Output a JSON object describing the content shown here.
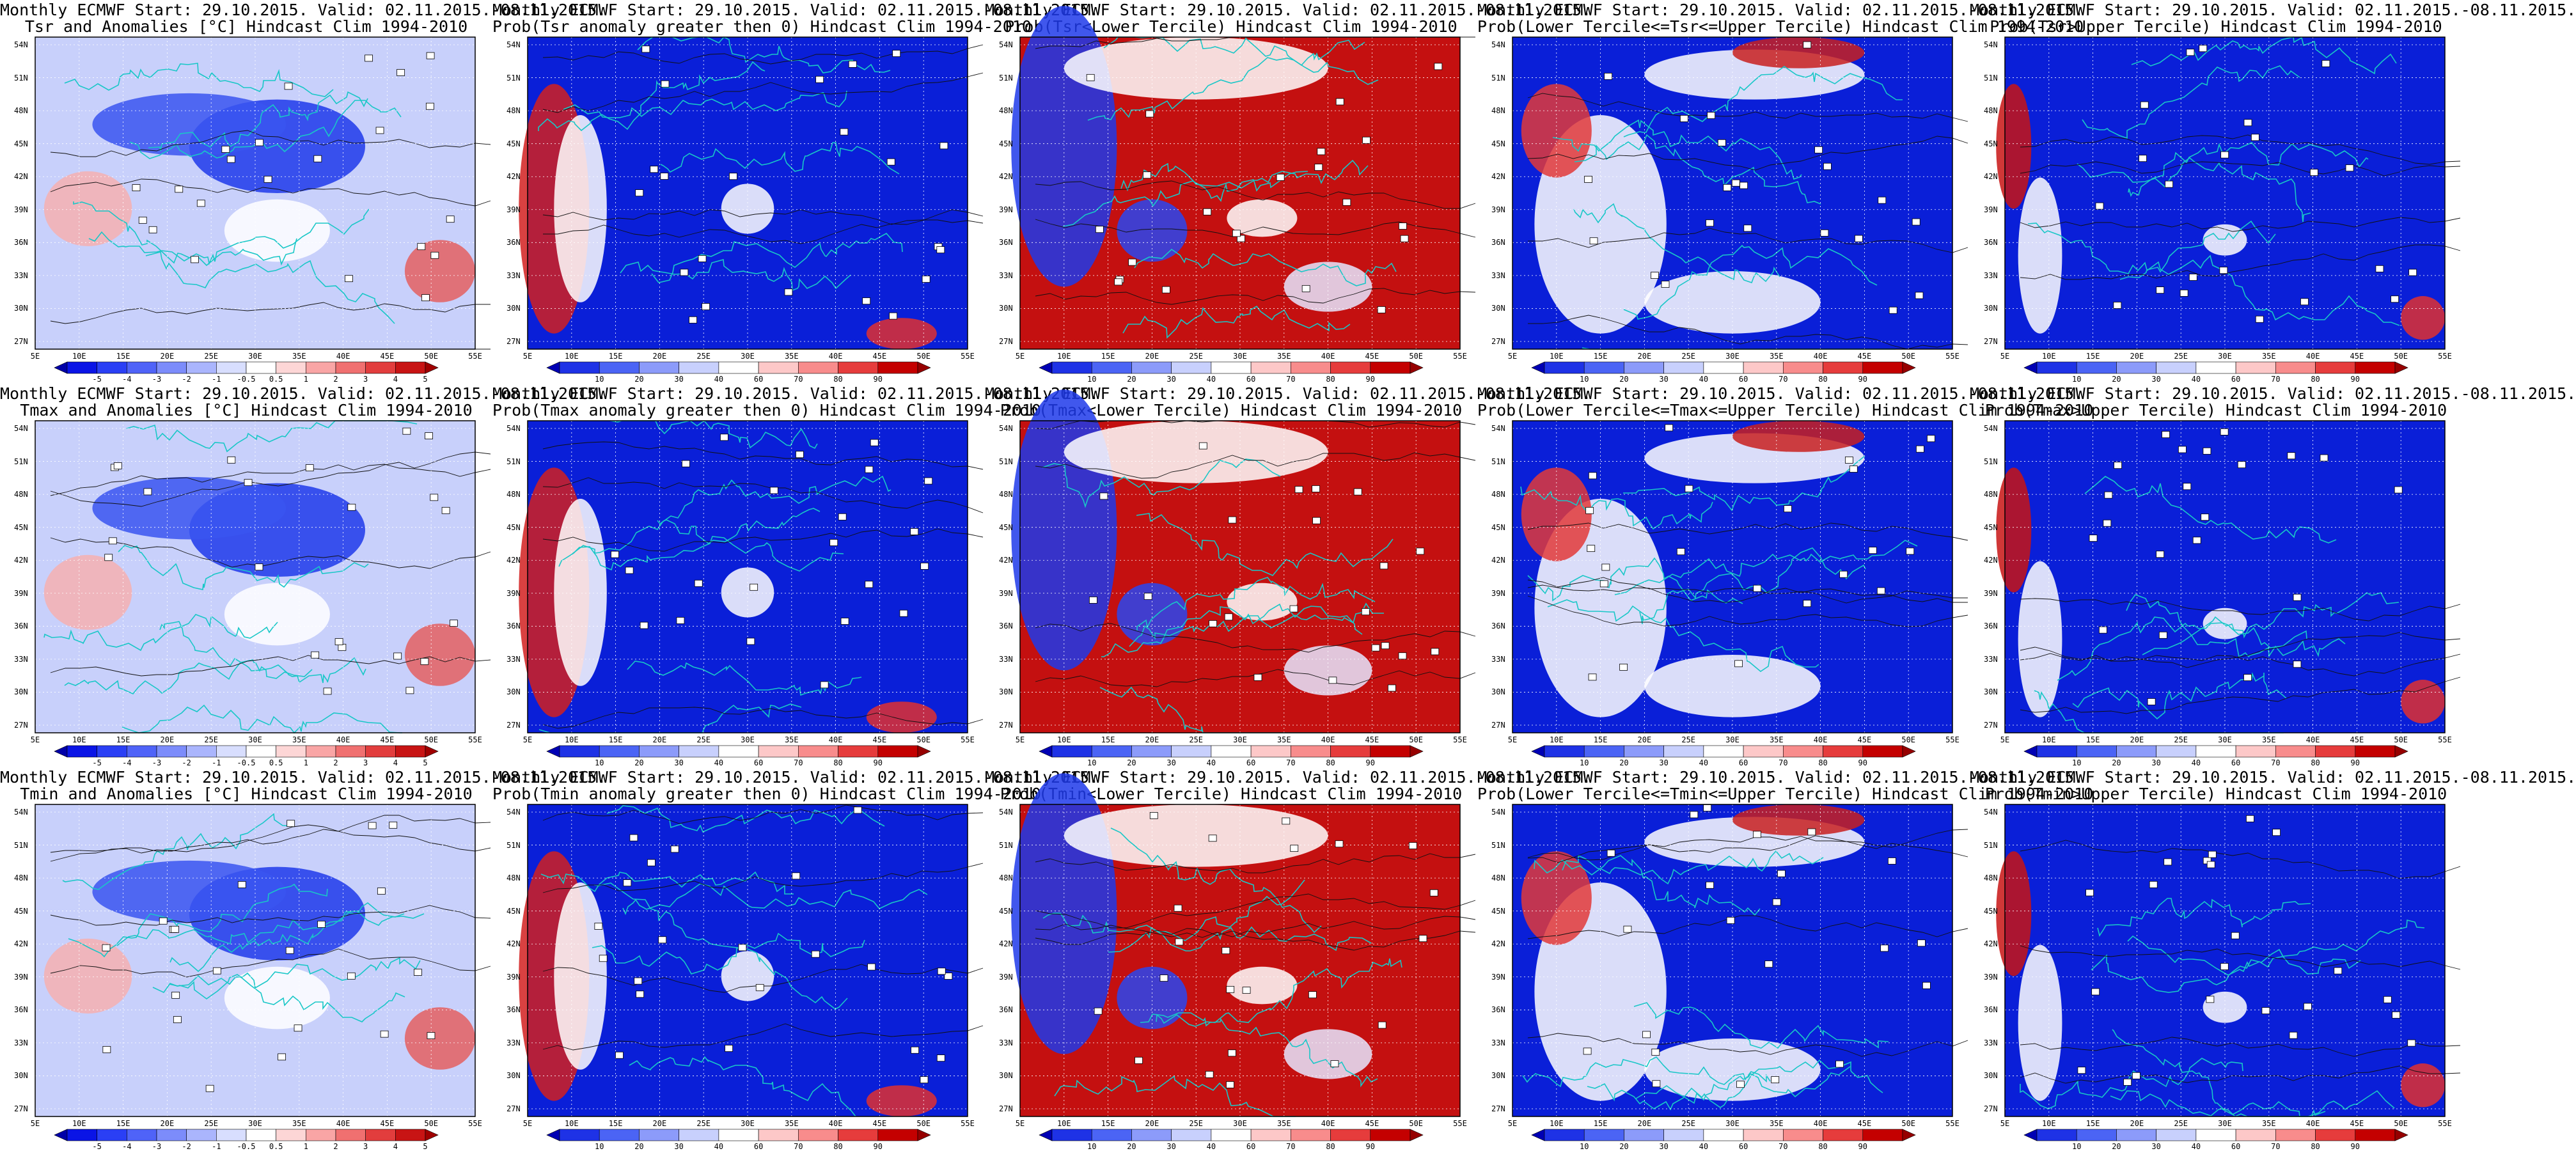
{
  "grid_rows": [
    {
      "variable": "Tsr",
      "panels": [
        {
          "kind": "anomaly",
          "title1": "Monthly ECMWF Start: 29.10.2015. Valid: 02.11.2015.-08.11.2015.",
          "title2": "Tsr and Anomalies [°C] Hindcast Clim 1994-2010"
        },
        {
          "kind": "prob_pos",
          "title1": "Monthly ECMWF Start: 29.10.2015. Valid: 02.11.2015.-08.11.2015.",
          "title2": "Prob(Tsr anomaly greater then 0) Hindcast Clim 1994-2010"
        },
        {
          "kind": "prob_lower",
          "title1": "Monthly ECMWF Start: 29.10.2015. Valid: 02.11.2015.-08.11.2015.",
          "title2": "Prob(Tsr<Lower Tercile) Hindcast Clim 1994-2010"
        },
        {
          "kind": "prob_middle",
          "title1": "Monthly ECMWF Start: 29.10.2015. Valid: 02.11.2015.-08.11.2015.",
          "title2": "Prob(Lower Tercile<=Tsr<=Upper Tercile) Hindcast Clim 1994-2010"
        },
        {
          "kind": "prob_upper",
          "title1": "Monthly ECMWF Start: 29.10.2015. Valid: 02.11.2015.-08.11.2015.",
          "title2": "Prob(Tsr>Upper Tercile) Hindcast Clim 1994-2010"
        }
      ]
    },
    {
      "variable": "Tmax",
      "panels": [
        {
          "kind": "anomaly",
          "title1": "Monthly ECMWF Start: 29.10.2015. Valid: 02.11.2015.-08.11.2015.",
          "title2": "Tmax and Anomalies [°C] Hindcast Clim 1994-2010"
        },
        {
          "kind": "prob_pos",
          "title1": "Monthly ECMWF Start: 29.10.2015. Valid: 02.11.2015.-08.11.2015.",
          "title2": "Prob(Tmax anomaly greater then 0) Hindcast Clim 1994-2010"
        },
        {
          "kind": "prob_lower",
          "title1": "Monthly ECMWF Start: 29.10.2015. Valid: 02.11.2015.-08.11.2015.",
          "title2": "Prob(Tmax<Lower Tercile) Hindcast Clim 1994-2010"
        },
        {
          "kind": "prob_middle",
          "title1": "Monthly ECMWF Start: 29.10.2015. Valid: 02.11.2015.-08.11.2015.",
          "title2": "Prob(Lower Tercile<=Tmax<=Upper Tercile) Hindcast Clim 1994-2010"
        },
        {
          "kind": "prob_upper",
          "title1": "Monthly ECMWF Start: 29.10.2015. Valid: 02.11.2015.-08.11.2015.",
          "title2": "Prob(Tmax>Upper Tercile) Hindcast Clim 1994-2010"
        }
      ]
    },
    {
      "variable": "Tmin",
      "panels": [
        {
          "kind": "anomaly",
          "title1": "Monthly ECMWF Start: 29.10.2015. Valid: 02.11.2015.-08.11.2015.",
          "title2": "Tmin and Anomalies [°C] Hindcast Clim 1994-2010"
        },
        {
          "kind": "prob_pos",
          "title1": "Monthly ECMWF Start: 29.10.2015. Valid: 02.11.2015.-08.11.2015.",
          "title2": "Prob(Tmin anomaly greater then 0) Hindcast Clim 1994-2010"
        },
        {
          "kind": "prob_lower",
          "title1": "Monthly ECMWF Start: 29.10.2015. Valid: 02.11.2015.-08.11.2015.",
          "title2": "Prob(Tmin<Lower Tercile) Hindcast Clim 1994-2010"
        },
        {
          "kind": "prob_middle",
          "title1": "Monthly ECMWF Start: 29.10.2015. Valid: 02.11.2015.-08.11.2015.",
          "title2": "Prob(Lower Tercile<=Tmin<=Upper Tercile) Hindcast Clim 1994-2010"
        },
        {
          "kind": "prob_upper",
          "title1": "Monthly ECMWF Start: 29.10.2015. Valid: 02.11.2015.-08.11.2015.",
          "title2": "Prob(Tmin>Upper Tercile) Hindcast Clim 1994-2010"
        }
      ]
    }
  ],
  "map": {
    "lon_ticks": [
      "5E",
      "10E",
      "15E",
      "20E",
      "25E",
      "30E",
      "35E",
      "40E",
      "45E",
      "50E",
      "55E"
    ],
    "lat_ticks": [
      "54N",
      "51N",
      "48N",
      "45N",
      "42N",
      "39N",
      "36N",
      "33N",
      "30N",
      "27N"
    ],
    "extent": {
      "lon": [
        5,
        55
      ],
      "lat": [
        25.5,
        55
      ]
    }
  },
  "colorbars": {
    "anomaly": {
      "labels": [
        "-5",
        "-4",
        "-3",
        "-2",
        "-1",
        "-0.5",
        "0.5",
        "1",
        "2",
        "3",
        "4",
        "5"
      ],
      "colors": [
        "#0000a8",
        "#0a14e6",
        "#2a3ff5",
        "#4f63f8",
        "#7c8cfb",
        "#aab5fd",
        "#d8defe",
        "#ffffff",
        "#fdd6d6",
        "#f9a5a5",
        "#f07070",
        "#e23d3d",
        "#c81414",
        "#a00000"
      ]
    },
    "prob": {
      "labels": [
        "10",
        "20",
        "30",
        "40",
        "60",
        "70",
        "80",
        "90"
      ],
      "colors": [
        "#0000b4",
        "#1e32e6",
        "#4b64f5",
        "#8c9bfa",
        "#c8d0fd",
        "#ffffff",
        "#fdc8c8",
        "#f88c8c",
        "#e63c3c",
        "#c40000",
        "#960000"
      ]
    }
  },
  "colors": {
    "coast": "#19c7c7",
    "contour": "#111111",
    "map_bg_low": "#e8ecff",
    "blue_deep": "#0a1fd8",
    "red_deep": "#c41010"
  }
}
